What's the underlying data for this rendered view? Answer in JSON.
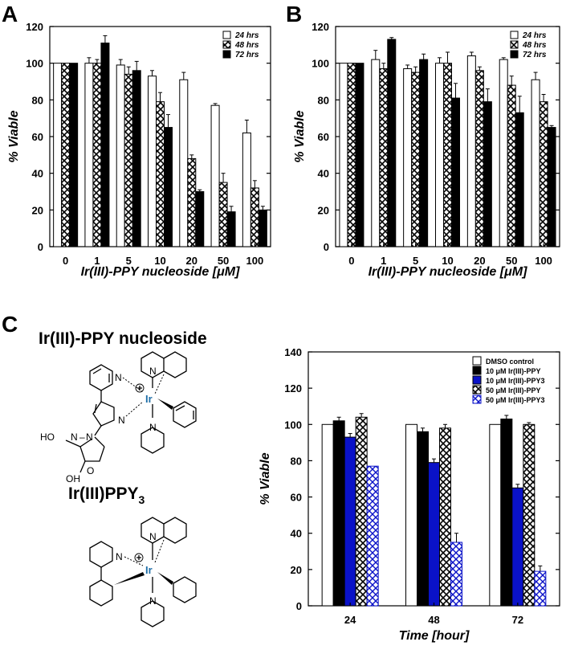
{
  "panels": {
    "a": {
      "letter": "A"
    },
    "b": {
      "letter": "B"
    },
    "c": {
      "letter": "C"
    }
  },
  "molecules": {
    "title1": "Ir(III)-PPY nucleoside",
    "title2_main": "Ir(III)PPY",
    "title2_sub": "3",
    "ir_label": "Ir",
    "n_label": "N",
    "oh_label": "OH",
    "ho_label": "HO",
    "o_label": "O"
  },
  "chart_data": [
    {
      "id": "A",
      "type": "bar",
      "xlabel": "Ir(III)-PPY nucleoside [μM]",
      "ylabel": "% Viable",
      "ylim": [
        0,
        120
      ],
      "yticks": [
        0,
        20,
        40,
        60,
        80,
        100,
        120
      ],
      "categories": [
        "0",
        "1",
        "5",
        "10",
        "20",
        "50",
        "100"
      ],
      "legend_position": "top-right",
      "series": [
        {
          "name": "24 hrs",
          "style": "white",
          "values": [
            100,
            100,
            99,
            93,
            91,
            77,
            62
          ],
          "errors": [
            0,
            3,
            3,
            3,
            4,
            1,
            7
          ]
        },
        {
          "name": "48 hrs",
          "style": "crosshatch",
          "values": [
            100,
            100,
            94,
            79,
            48,
            35,
            32
          ],
          "errors": [
            0,
            2,
            4,
            5,
            2,
            5,
            4
          ]
        },
        {
          "name": "72 hrs",
          "style": "black",
          "values": [
            100,
            111,
            96,
            65,
            30,
            19,
            20
          ],
          "errors": [
            0,
            4,
            5,
            7,
            1,
            3,
            2
          ]
        }
      ]
    },
    {
      "id": "B",
      "type": "bar",
      "xlabel": "Ir(III)-PPY nucleoside [μM]",
      "ylabel": "% Viable",
      "ylim": [
        0,
        120
      ],
      "yticks": [
        0,
        20,
        40,
        60,
        80,
        100,
        120
      ],
      "categories": [
        "0",
        "1",
        "5",
        "10",
        "20",
        "50",
        "100"
      ],
      "legend_position": "top-right",
      "series": [
        {
          "name": "24 hrs",
          "style": "white",
          "values": [
            100,
            102,
            97,
            100,
            104,
            102,
            91
          ],
          "errors": [
            0,
            5,
            2,
            3,
            2,
            1,
            4
          ]
        },
        {
          "name": "48 hrs",
          "style": "crosshatch",
          "values": [
            100,
            97,
            95,
            100,
            96,
            88,
            79
          ],
          "errors": [
            0,
            3,
            3,
            6,
            2,
            5,
            4
          ]
        },
        {
          "name": "72 hrs",
          "style": "black",
          "values": [
            100,
            113,
            102,
            81,
            79,
            73,
            65
          ],
          "errors": [
            0,
            1,
            3,
            8,
            7,
            9,
            1
          ]
        }
      ]
    },
    {
      "id": "C",
      "type": "bar",
      "xlabel": "Time [hour]",
      "ylabel": "% Viable",
      "ylim": [
        0,
        140
      ],
      "yticks": [
        0,
        20,
        40,
        60,
        80,
        100,
        120,
        140
      ],
      "categories": [
        "24",
        "48",
        "72"
      ],
      "legend_position": "top-right",
      "series": [
        {
          "name": "DMSO control",
          "style": "white",
          "values": [
            100,
            100,
            100
          ],
          "errors": [
            0,
            0,
            0
          ]
        },
        {
          "name": "10 μM Ir(III)-PPY",
          "style": "black",
          "values": [
            102,
            96,
            103
          ],
          "errors": [
            2,
            2,
            2
          ]
        },
        {
          "name": "10 μM Ir(III)-PPY3",
          "style": "blue",
          "values": [
            93,
            79,
            65
          ],
          "errors": [
            2,
            2,
            2
          ]
        },
        {
          "name": "50 μM Ir(III)-PPY",
          "style": "crosshatch",
          "values": [
            104,
            98,
            100
          ],
          "errors": [
            2,
            2,
            1
          ]
        },
        {
          "name": "50 μM Ir(III)-PPY3",
          "style": "bluehatch",
          "values": [
            77,
            35,
            19
          ],
          "errors": [
            0,
            5,
            3
          ]
        }
      ]
    }
  ],
  "colors": {
    "black": "#000000",
    "blue": "#0a12c8",
    "ir": "#1f6fa8"
  }
}
